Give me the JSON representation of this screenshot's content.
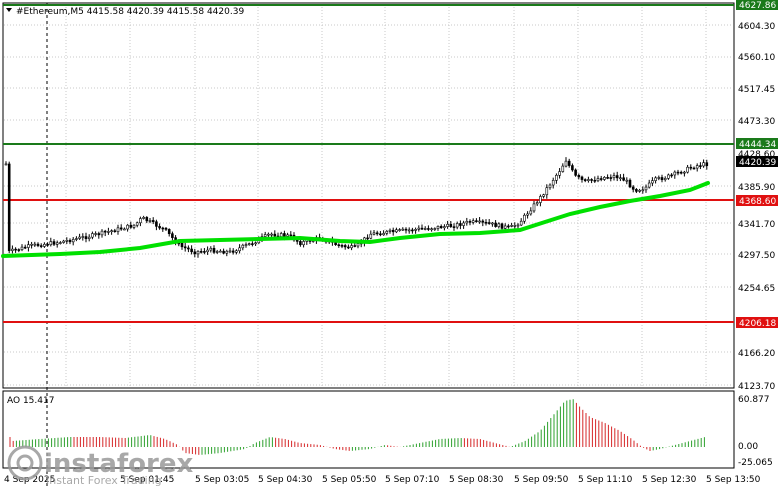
{
  "header": {
    "symbol_line": "#Ethereum,M5  4415.58 4420.39 4415.58 4420.39"
  },
  "price_axis": {
    "labels": [
      "4604.30",
      "4560.10",
      "4517.45",
      "4473.30",
      "4385.90",
      "4341.70",
      "4297.50",
      "4254.65",
      "4166.20",
      "4123.70"
    ],
    "current_price": "4420.39",
    "crosshair_price": "4428.60"
  },
  "levels": [
    {
      "name": "resistance-top",
      "value": "4627.86",
      "color": "#1a7a1a"
    },
    {
      "name": "resistance",
      "value": "4444.34",
      "color": "#1a7a1a"
    },
    {
      "name": "support",
      "value": "4368.60",
      "color": "#e01010"
    },
    {
      "name": "support-low",
      "value": "4206.18",
      "color": "#e01010"
    }
  ],
  "indicator": {
    "name_line": "AO 15.417",
    "axis_labels": [
      "60.877",
      "0.00",
      "-25.065"
    ]
  },
  "time_axis": {
    "labels": [
      "4 Sep 2025",
      "5 Sep 01:45",
      "5 Sep 03:05",
      "5 Sep 04:30",
      "5 Sep 05:50",
      "5 Sep 07:10",
      "5 Sep 08:30",
      "5 Sep 09:50",
      "5 Sep 11:10",
      "5 Sep 12:30",
      "5 Sep 13:50"
    ]
  },
  "watermark": {
    "brand": "instaforex",
    "tagline": "Instant Forex Trading"
  },
  "colors": {
    "grid": "#c8c8c8",
    "ma_line": "#00e000",
    "ao_up": "#2ca02c",
    "ao_down": "#d62728",
    "tag_bg": "#000000",
    "watermark": "#9a9a9a"
  }
}
